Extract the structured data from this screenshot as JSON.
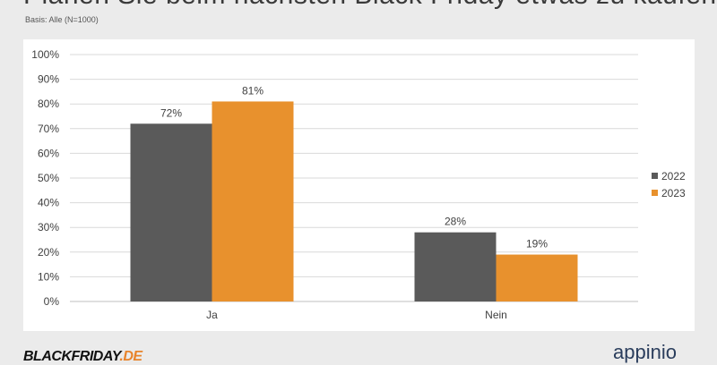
{
  "header": {
    "title": "Planen Sie beim nächsten Black Friday etwas zu kaufen?",
    "subtitle": "Basis: Alle (N=1000)"
  },
  "footer": {
    "logo_left_main": "BLACKFRIDAY",
    "logo_left_accent": ".DE",
    "logo_right": "appinio"
  },
  "colors": {
    "series_2022": "#5a5a5a",
    "series_2023": "#e8912d",
    "gridline": "#d9d9d9"
  },
  "chart_data": {
    "type": "bar",
    "title": "Planen Sie beim nächsten Black Friday etwas zu kaufen?",
    "subtitle": "Basis: Alle (N=1000)",
    "categories": [
      "Ja",
      "Nein"
    ],
    "series": [
      {
        "name": "2022",
        "values": [
          72,
          28
        ],
        "labels": [
          "72%",
          "28%"
        ]
      },
      {
        "name": "2023",
        "values": [
          81,
          19
        ],
        "labels": [
          "81%",
          "19%"
        ]
      }
    ],
    "ylim": [
      0,
      100
    ],
    "yticks": [
      "0%",
      "10%",
      "20%",
      "30%",
      "40%",
      "50%",
      "60%",
      "70%",
      "80%",
      "90%",
      "100%"
    ],
    "grid": true,
    "legend_position": "right"
  }
}
